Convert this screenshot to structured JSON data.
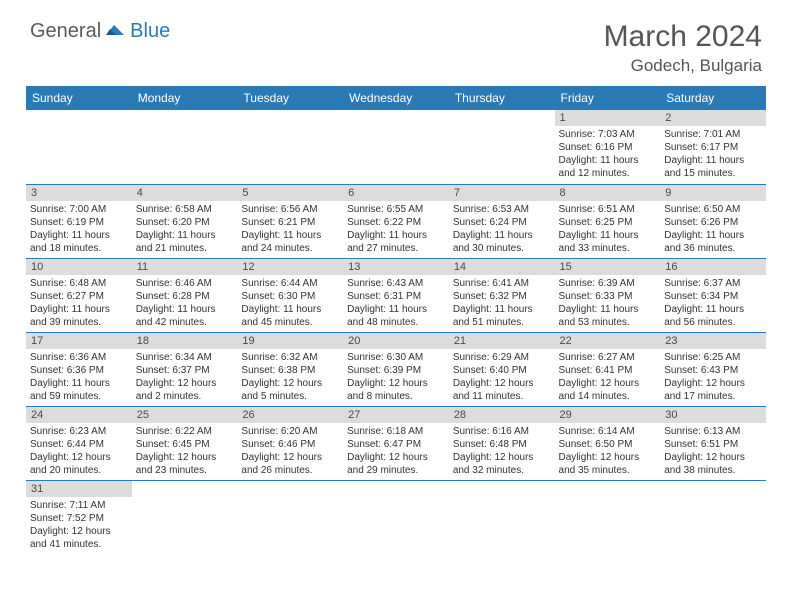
{
  "brand": {
    "part1": "General",
    "part2": "Blue"
  },
  "title": "March 2024",
  "location": "Godech, Bulgaria",
  "colors": {
    "header_bg": "#2a7ab5",
    "header_text": "#ffffff",
    "daynum_bg": "#dcdcdc",
    "cell_border": "#2a7ab5",
    "body_text": "#333333",
    "title_text": "#555555"
  },
  "dayNames": [
    "Sunday",
    "Monday",
    "Tuesday",
    "Wednesday",
    "Thursday",
    "Friday",
    "Saturday"
  ],
  "weeks": [
    [
      null,
      null,
      null,
      null,
      null,
      {
        "n": "1",
        "sr": "Sunrise: 7:03 AM",
        "ss": "Sunset: 6:16 PM",
        "dl1": "Daylight: 11 hours",
        "dl2": "and 12 minutes."
      },
      {
        "n": "2",
        "sr": "Sunrise: 7:01 AM",
        "ss": "Sunset: 6:17 PM",
        "dl1": "Daylight: 11 hours",
        "dl2": "and 15 minutes."
      }
    ],
    [
      {
        "n": "3",
        "sr": "Sunrise: 7:00 AM",
        "ss": "Sunset: 6:19 PM",
        "dl1": "Daylight: 11 hours",
        "dl2": "and 18 minutes."
      },
      {
        "n": "4",
        "sr": "Sunrise: 6:58 AM",
        "ss": "Sunset: 6:20 PM",
        "dl1": "Daylight: 11 hours",
        "dl2": "and 21 minutes."
      },
      {
        "n": "5",
        "sr": "Sunrise: 6:56 AM",
        "ss": "Sunset: 6:21 PM",
        "dl1": "Daylight: 11 hours",
        "dl2": "and 24 minutes."
      },
      {
        "n": "6",
        "sr": "Sunrise: 6:55 AM",
        "ss": "Sunset: 6:22 PM",
        "dl1": "Daylight: 11 hours",
        "dl2": "and 27 minutes."
      },
      {
        "n": "7",
        "sr": "Sunrise: 6:53 AM",
        "ss": "Sunset: 6:24 PM",
        "dl1": "Daylight: 11 hours",
        "dl2": "and 30 minutes."
      },
      {
        "n": "8",
        "sr": "Sunrise: 6:51 AM",
        "ss": "Sunset: 6:25 PM",
        "dl1": "Daylight: 11 hours",
        "dl2": "and 33 minutes."
      },
      {
        "n": "9",
        "sr": "Sunrise: 6:50 AM",
        "ss": "Sunset: 6:26 PM",
        "dl1": "Daylight: 11 hours",
        "dl2": "and 36 minutes."
      }
    ],
    [
      {
        "n": "10",
        "sr": "Sunrise: 6:48 AM",
        "ss": "Sunset: 6:27 PM",
        "dl1": "Daylight: 11 hours",
        "dl2": "and 39 minutes."
      },
      {
        "n": "11",
        "sr": "Sunrise: 6:46 AM",
        "ss": "Sunset: 6:28 PM",
        "dl1": "Daylight: 11 hours",
        "dl2": "and 42 minutes."
      },
      {
        "n": "12",
        "sr": "Sunrise: 6:44 AM",
        "ss": "Sunset: 6:30 PM",
        "dl1": "Daylight: 11 hours",
        "dl2": "and 45 minutes."
      },
      {
        "n": "13",
        "sr": "Sunrise: 6:43 AM",
        "ss": "Sunset: 6:31 PM",
        "dl1": "Daylight: 11 hours",
        "dl2": "and 48 minutes."
      },
      {
        "n": "14",
        "sr": "Sunrise: 6:41 AM",
        "ss": "Sunset: 6:32 PM",
        "dl1": "Daylight: 11 hours",
        "dl2": "and 51 minutes."
      },
      {
        "n": "15",
        "sr": "Sunrise: 6:39 AM",
        "ss": "Sunset: 6:33 PM",
        "dl1": "Daylight: 11 hours",
        "dl2": "and 53 minutes."
      },
      {
        "n": "16",
        "sr": "Sunrise: 6:37 AM",
        "ss": "Sunset: 6:34 PM",
        "dl1": "Daylight: 11 hours",
        "dl2": "and 56 minutes."
      }
    ],
    [
      {
        "n": "17",
        "sr": "Sunrise: 6:36 AM",
        "ss": "Sunset: 6:36 PM",
        "dl1": "Daylight: 11 hours",
        "dl2": "and 59 minutes."
      },
      {
        "n": "18",
        "sr": "Sunrise: 6:34 AM",
        "ss": "Sunset: 6:37 PM",
        "dl1": "Daylight: 12 hours",
        "dl2": "and 2 minutes."
      },
      {
        "n": "19",
        "sr": "Sunrise: 6:32 AM",
        "ss": "Sunset: 6:38 PM",
        "dl1": "Daylight: 12 hours",
        "dl2": "and 5 minutes."
      },
      {
        "n": "20",
        "sr": "Sunrise: 6:30 AM",
        "ss": "Sunset: 6:39 PM",
        "dl1": "Daylight: 12 hours",
        "dl2": "and 8 minutes."
      },
      {
        "n": "21",
        "sr": "Sunrise: 6:29 AM",
        "ss": "Sunset: 6:40 PM",
        "dl1": "Daylight: 12 hours",
        "dl2": "and 11 minutes."
      },
      {
        "n": "22",
        "sr": "Sunrise: 6:27 AM",
        "ss": "Sunset: 6:41 PM",
        "dl1": "Daylight: 12 hours",
        "dl2": "and 14 minutes."
      },
      {
        "n": "23",
        "sr": "Sunrise: 6:25 AM",
        "ss": "Sunset: 6:43 PM",
        "dl1": "Daylight: 12 hours",
        "dl2": "and 17 minutes."
      }
    ],
    [
      {
        "n": "24",
        "sr": "Sunrise: 6:23 AM",
        "ss": "Sunset: 6:44 PM",
        "dl1": "Daylight: 12 hours",
        "dl2": "and 20 minutes."
      },
      {
        "n": "25",
        "sr": "Sunrise: 6:22 AM",
        "ss": "Sunset: 6:45 PM",
        "dl1": "Daylight: 12 hours",
        "dl2": "and 23 minutes."
      },
      {
        "n": "26",
        "sr": "Sunrise: 6:20 AM",
        "ss": "Sunset: 6:46 PM",
        "dl1": "Daylight: 12 hours",
        "dl2": "and 26 minutes."
      },
      {
        "n": "27",
        "sr": "Sunrise: 6:18 AM",
        "ss": "Sunset: 6:47 PM",
        "dl1": "Daylight: 12 hours",
        "dl2": "and 29 minutes."
      },
      {
        "n": "28",
        "sr": "Sunrise: 6:16 AM",
        "ss": "Sunset: 6:48 PM",
        "dl1": "Daylight: 12 hours",
        "dl2": "and 32 minutes."
      },
      {
        "n": "29",
        "sr": "Sunrise: 6:14 AM",
        "ss": "Sunset: 6:50 PM",
        "dl1": "Daylight: 12 hours",
        "dl2": "and 35 minutes."
      },
      {
        "n": "30",
        "sr": "Sunrise: 6:13 AM",
        "ss": "Sunset: 6:51 PM",
        "dl1": "Daylight: 12 hours",
        "dl2": "and 38 minutes."
      }
    ],
    [
      {
        "n": "31",
        "sr": "Sunrise: 7:11 AM",
        "ss": "Sunset: 7:52 PM",
        "dl1": "Daylight: 12 hours",
        "dl2": "and 41 minutes."
      },
      null,
      null,
      null,
      null,
      null,
      null
    ]
  ]
}
